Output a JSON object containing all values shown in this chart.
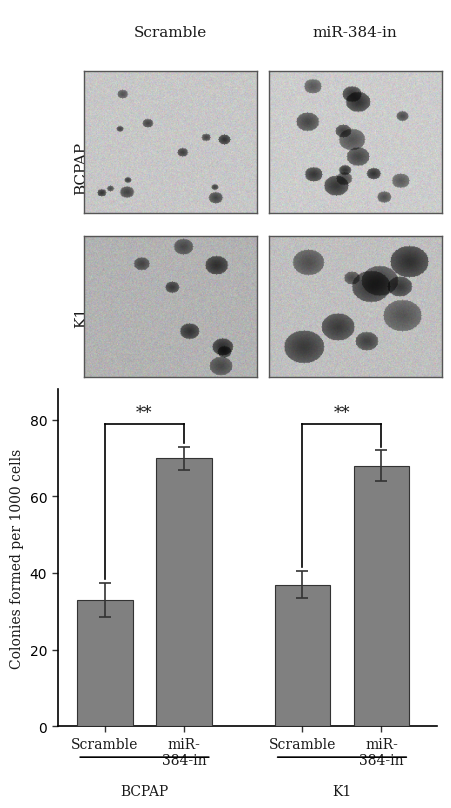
{
  "col_labels": [
    "Scramble",
    "miR-384-in"
  ],
  "row_labels": [
    "BCPAP",
    "K1"
  ],
  "bar_values": [
    33,
    70,
    37,
    68
  ],
  "bar_errors": [
    4.5,
    3,
    3.5,
    4
  ],
  "bar_color": "#808080",
  "bar_edge_color": "#333333",
  "ylabel": "Colonies formed per 1000 cells",
  "yticks": [
    0,
    20,
    40,
    60,
    80
  ],
  "ylim": [
    0,
    88
  ],
  "significance": "**",
  "bar_positions": [
    1,
    2,
    3.5,
    4.5
  ],
  "group_centers": [
    1.5,
    4.0
  ],
  "group_labels": [
    "BCPAP",
    "K1"
  ],
  "tick_labels": [
    "Scramble",
    "miR-\n384-in",
    "Scramble",
    "miR-\n384-in"
  ],
  "background_color": "#ffffff",
  "bar_width": 0.7,
  "font_color": "#1a1a1a",
  "axis_linewidth": 1.2
}
